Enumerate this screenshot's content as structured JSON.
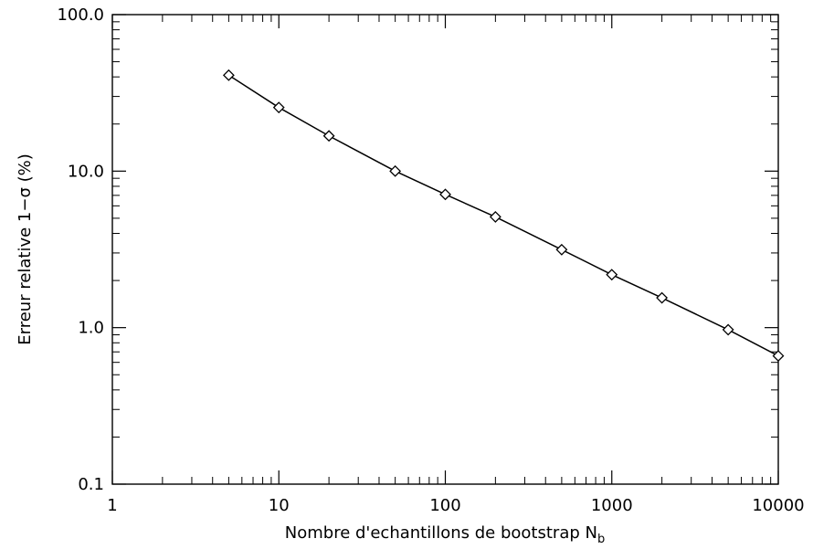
{
  "chart_data": {
    "type": "line",
    "x_scale": "log",
    "y_scale": "log",
    "xlim": [
      1,
      10000
    ],
    "ylim": [
      0.1,
      100
    ],
    "xlabel": "Nombre d'echantillons de bootstrap N",
    "xlabel_subscript": "b",
    "ylabel": "Erreur relative 1−σ (%)",
    "x_ticks": [
      {
        "value": 1,
        "label": "1"
      },
      {
        "value": 10,
        "label": "10"
      },
      {
        "value": 100,
        "label": "100"
      },
      {
        "value": 1000,
        "label": "1000"
      },
      {
        "value": 10000,
        "label": "10000"
      }
    ],
    "y_ticks": [
      {
        "value": 0.1,
        "label": "0.1"
      },
      {
        "value": 1,
        "label": "1.0"
      },
      {
        "value": 10,
        "label": "10.0"
      },
      {
        "value": 100,
        "label": "100.0"
      }
    ],
    "marker": "diamond",
    "series": [
      {
        "x": [
          5,
          10,
          20,
          50,
          100,
          200,
          500,
          1000,
          2000,
          5000,
          10000
        ],
        "y": [
          41,
          25.5,
          16.8,
          10.0,
          7.1,
          5.1,
          3.15,
          2.18,
          1.55,
          0.97,
          0.66
        ]
      }
    ],
    "grid": false,
    "color": "#000000"
  }
}
